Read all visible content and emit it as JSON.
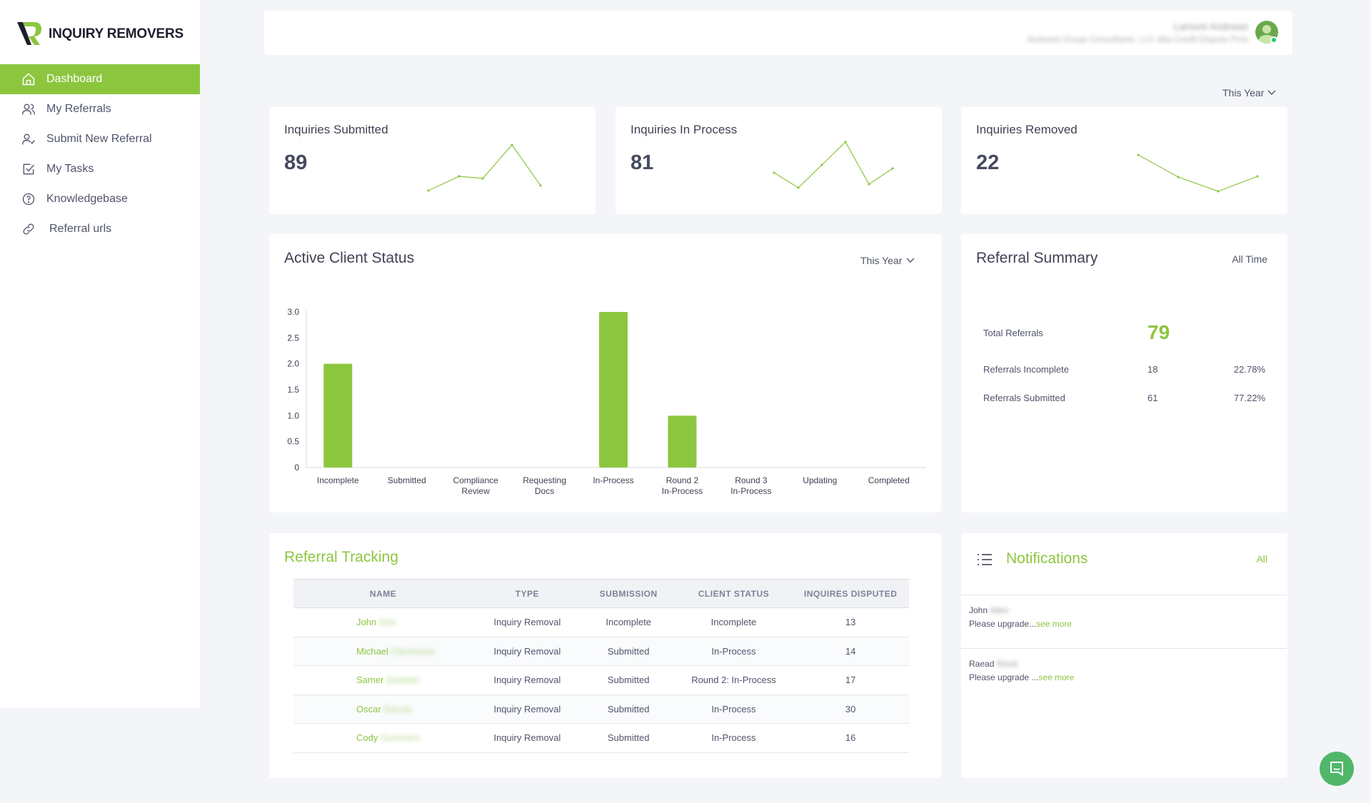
{
  "brand": {
    "name": "INQUIRY REMOVERS",
    "accent": "#8cc63f"
  },
  "sidebar": {
    "items": [
      {
        "label": "Dashboard",
        "icon": "home-icon",
        "active": true
      },
      {
        "label": "My Referrals",
        "icon": "users-icon"
      },
      {
        "label": "Submit New Referral",
        "icon": "user-check-icon"
      },
      {
        "label": "My Tasks",
        "icon": "check-square-icon"
      },
      {
        "label": "Knowledgebase",
        "icon": "help-circle-icon"
      },
      {
        "label": "Referral urls",
        "icon": "link-icon"
      }
    ]
  },
  "header": {
    "user_name": "Lamont Andrews",
    "user_org": "Andrews Group Consultants, LLC dba Credit Dispute Pros"
  },
  "period_top": "This Year",
  "stats": [
    {
      "title": "Inquiries Submitted",
      "value": "89"
    },
    {
      "title": "Inquiries In Process",
      "value": "81"
    },
    {
      "title": "Inquiries Removed",
      "value": "22"
    }
  ],
  "active_client_status": {
    "title": "Active Client Status",
    "period": "This Year"
  },
  "chart_data": {
    "type": "bar",
    "categories": [
      "Incomplete",
      "Submitted",
      "Compliance Review",
      "Requesting Docs",
      "In-Process",
      "Round 2 In-Process",
      "Round 3 In-Process",
      "Updating",
      "Completed"
    ],
    "category_lines": [
      [
        "Incomplete"
      ],
      [
        "Submitted"
      ],
      [
        "Compliance",
        "Review"
      ],
      [
        "Requesting",
        "Docs"
      ],
      [
        "In-Process"
      ],
      [
        "Round 2",
        "In-Process"
      ],
      [
        "Round 3",
        "In-Process"
      ],
      [
        "Updating"
      ],
      [
        "Completed"
      ]
    ],
    "values": [
      2,
      0,
      0,
      0,
      3,
      1,
      0,
      0,
      0
    ],
    "yticks": [
      "0",
      "0.5",
      "1.0",
      "1.5",
      "2.0",
      "2.5",
      "3.0"
    ],
    "ylim": [
      0,
      3
    ],
    "color": "#8cc63f",
    "title": "",
    "xlabel": "",
    "ylabel": "",
    "grid": false
  },
  "referral_summary": {
    "title": "Referral Summary",
    "period": "All Time",
    "total_label": "Total Referrals",
    "total_value": "79",
    "rows": [
      {
        "label": "Referrals Incomplete",
        "count": "18",
        "pct": "22.78%"
      },
      {
        "label": "Referrals Submitted",
        "count": "61",
        "pct": "77.22%"
      }
    ]
  },
  "referral_tracking": {
    "title": "Referral Tracking",
    "columns": [
      "NAME",
      "TYPE",
      "SUBMISSION",
      "CLIENT STATUS",
      "INQUIRES DISPUTED"
    ],
    "rows": [
      {
        "first": "John",
        "last": "Doe",
        "type": "Inquiry Removal",
        "submission": "Incomplete",
        "status": "Incomplete",
        "disputed": "13"
      },
      {
        "first": "Michael",
        "last": "Clemmons",
        "type": "Inquiry Removal",
        "submission": "Submitted",
        "status": "In-Process",
        "disputed": "14"
      },
      {
        "first": "Samer",
        "last": "Qaddah",
        "type": "Inquiry Removal",
        "submission": "Submitted",
        "status": "Round 2: In-Process",
        "disputed": "17"
      },
      {
        "first": "Oscar",
        "last": "Garcia",
        "type": "Inquiry Removal",
        "submission": "Submitted",
        "status": "In-Process",
        "disputed": "30"
      },
      {
        "first": "Cody",
        "last": "Summers",
        "type": "Inquiry Removal",
        "submission": "Submitted",
        "status": "In-Process",
        "disputed": "16"
      }
    ]
  },
  "notifications": {
    "title": "Notifications",
    "all_label": "All",
    "items": [
      {
        "first": "John",
        "last": "Allen",
        "message": "Please upgrade...",
        "see_more": "see more"
      },
      {
        "first": "Raead",
        "last": "Rizek",
        "message": "Please upgrade ...",
        "see_more": "see more"
      }
    ]
  }
}
